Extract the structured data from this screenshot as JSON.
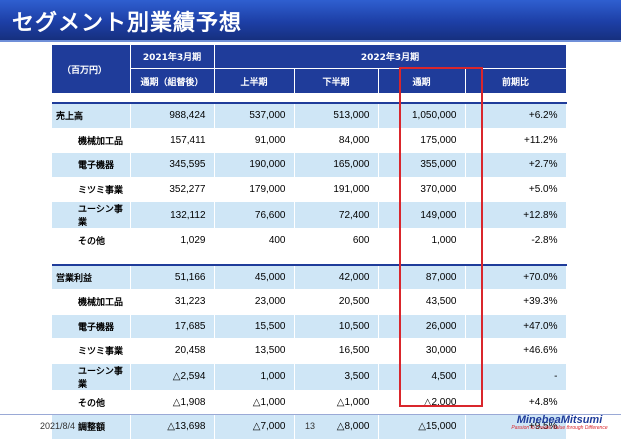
{
  "title": "セグメント別業績予想",
  "header": {
    "unit": "（百万円）",
    "fy2021": "2021年3月期",
    "fy2022": "2022年3月期",
    "actual": "通期（組替後）",
    "h1": "上半期",
    "h2": "下半期",
    "full": "通期",
    "yoy": "前期比"
  },
  "rows": [
    {
      "label": "売上高",
      "sub": false,
      "style": "blue",
      "vals": [
        "988,424",
        "537,000",
        "513,000",
        "1,050,000",
        "+6.2%"
      ]
    },
    {
      "label": "機械加工品",
      "sub": true,
      "style": "white",
      "vals": [
        "157,411",
        "91,000",
        "84,000",
        "175,000",
        "+11.2%"
      ]
    },
    {
      "label": "電子機器",
      "sub": true,
      "style": "blue",
      "vals": [
        "345,595",
        "190,000",
        "165,000",
        "355,000",
        "+2.7%"
      ]
    },
    {
      "label": "ミツミ事業",
      "sub": true,
      "style": "white",
      "vals": [
        "352,277",
        "179,000",
        "191,000",
        "370,000",
        "+5.0%"
      ]
    },
    {
      "label": "ユーシン事業",
      "sub": true,
      "style": "blue",
      "vals": [
        "132,112",
        "76,600",
        "72,400",
        "149,000",
        "+12.8%"
      ]
    },
    {
      "label": "その他",
      "sub": true,
      "style": "white",
      "vals": [
        "1,029",
        "400",
        "600",
        "1,000",
        "-2.8%"
      ]
    },
    {
      "label": "営業利益",
      "sub": false,
      "style": "blue",
      "vals": [
        "51,166",
        "45,000",
        "42,000",
        "87,000",
        "+70.0%"
      ]
    },
    {
      "label": "機械加工品",
      "sub": true,
      "style": "white",
      "vals": [
        "31,223",
        "23,000",
        "20,500",
        "43,500",
        "+39.3%"
      ]
    },
    {
      "label": "電子機器",
      "sub": true,
      "style": "blue",
      "vals": [
        "17,685",
        "15,500",
        "10,500",
        "26,000",
        "+47.0%"
      ]
    },
    {
      "label": "ミツミ事業",
      "sub": true,
      "style": "white",
      "vals": [
        "20,458",
        "13,500",
        "16,500",
        "30,000",
        "+46.6%"
      ]
    },
    {
      "label": "ユーシン事業",
      "sub": true,
      "style": "blue",
      "vals": [
        "△2,594",
        "1,000",
        "3,500",
        "4,500",
        "-"
      ]
    },
    {
      "label": "その他",
      "sub": true,
      "style": "white",
      "vals": [
        "△1,908",
        "△1,000",
        "△1,000",
        "△2,000",
        "+4.8%"
      ]
    },
    {
      "label": "調整額",
      "sub": true,
      "style": "blue",
      "vals": [
        "△13,698",
        "△7,000",
        "△8,000",
        "△15,000",
        "+9.5%"
      ]
    }
  ],
  "footer": {
    "date": "2021/8/4",
    "page": "13",
    "logo_name": "MinebeaMitsumi",
    "logo_tag": "Passion to Create Value through Difference"
  },
  "colors": {
    "title_bar": "#1d3fa6",
    "header_bg": "#1f3c9a",
    "row_blue": "#cfe6f6",
    "highlight": "#d9262c"
  }
}
